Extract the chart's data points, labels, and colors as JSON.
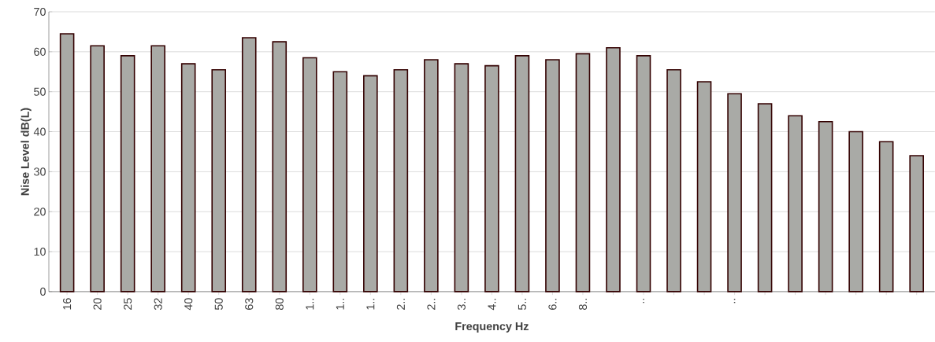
{
  "chart_data": {
    "type": "bar",
    "xlabel": "Frequency Hz",
    "ylabel": "Nise Level dB(L)",
    "categories": [
      "16",
      "20",
      "25",
      "32",
      "40",
      "50",
      "63",
      "80",
      "1..",
      "1..",
      "1..",
      "2..",
      "2..",
      "3..",
      "4..",
      "5..",
      "6..",
      "8..",
      null,
      "..",
      null,
      null,
      "..",
      null,
      null,
      null,
      null,
      null,
      null
    ],
    "values": [
      64.5,
      61.5,
      59,
      61.5,
      57,
      55.5,
      63.5,
      62.5,
      58.5,
      55,
      54,
      55.5,
      58,
      57,
      56.5,
      59,
      58,
      59.5,
      61,
      59,
      55.5,
      52.5,
      49.5,
      47,
      44,
      42.5,
      40,
      37.5,
      34
    ],
    "color": "#a9aaa6",
    "ylim": [
      0,
      70
    ],
    "yticks": [
      0,
      10,
      20,
      30,
      40,
      50,
      60,
      70
    ],
    "grid": "y"
  }
}
